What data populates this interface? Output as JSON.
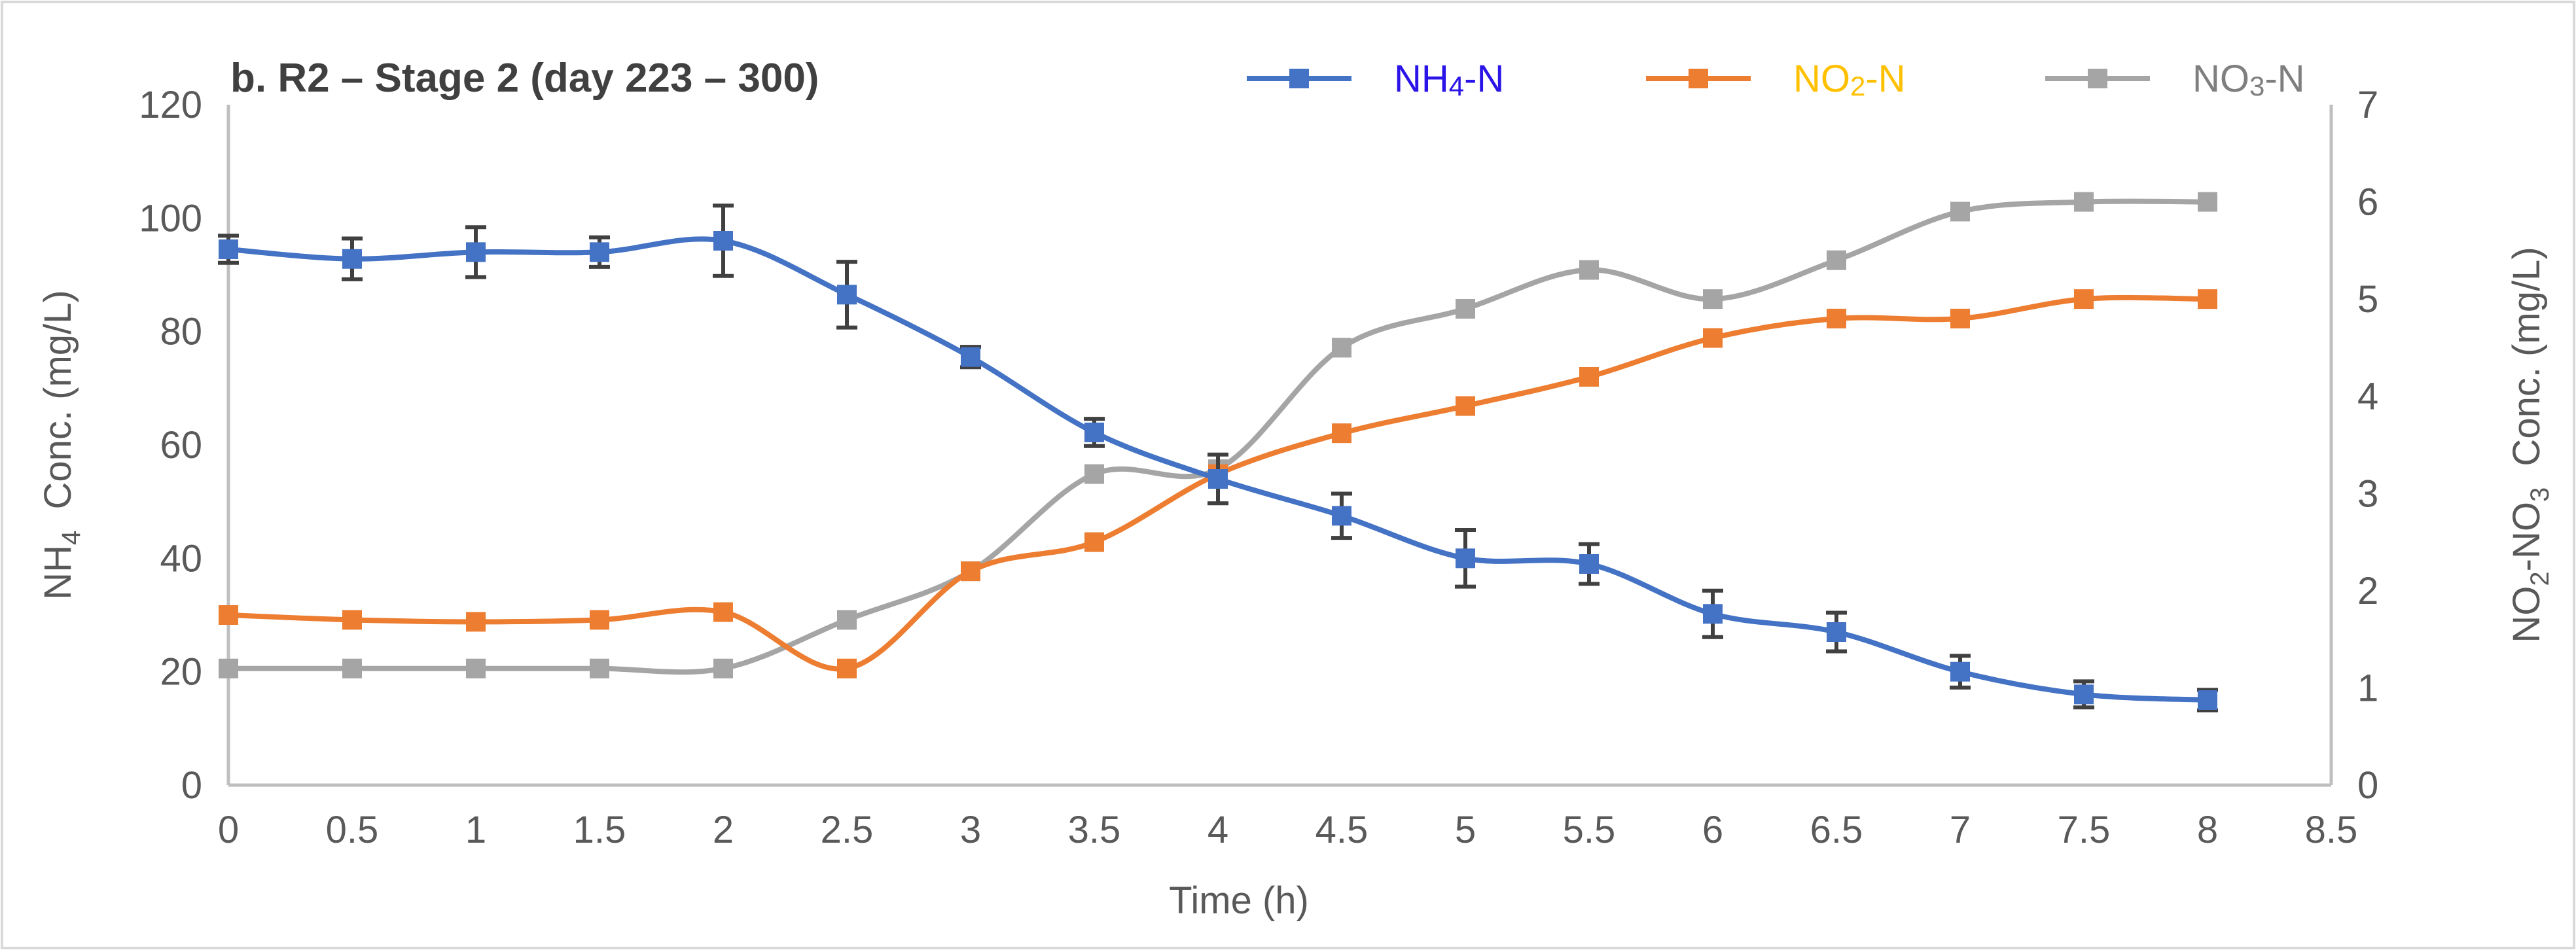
{
  "chart_data": {
    "type": "line",
    "title": "b. R2 – Stage 2 (day 223 – 300)",
    "xlabel": "Time (h)",
    "ylabel_left": {
      "main": "NH",
      "sub": "4",
      "rest": "  Conc. (mg/L)"
    },
    "ylabel_right": {
      "p1": "NO",
      "s1": "2",
      "p2": "-NO",
      "s2": "3",
      "p3": "  Conc. (mg/L)"
    },
    "xlim": [
      0,
      8.5
    ],
    "ylim_left": [
      0,
      120
    ],
    "ylim_right": [
      0,
      7
    ],
    "x_ticks": [
      "0",
      "0.5",
      "1",
      "1.5",
      "2",
      "2.5",
      "3",
      "3.5",
      "4",
      "4.5",
      "5",
      "5.5",
      "6",
      "6.5",
      "7",
      "7.5",
      "8",
      "8.5"
    ],
    "y_left_ticks": [
      "0",
      "20",
      "40",
      "60",
      "80",
      "100",
      "120"
    ],
    "y_right_ticks": [
      "0",
      "1",
      "2",
      "3",
      "4",
      "5",
      "6",
      "7"
    ],
    "x": [
      0,
      0.5,
      1,
      1.5,
      2,
      2.5,
      3,
      3.5,
      4,
      4.5,
      5,
      5.5,
      6,
      6.5,
      7,
      7.5,
      8
    ],
    "series": [
      {
        "name": "NH4-N",
        "legend_label": "NH4-N",
        "legend_main": "NH",
        "legend_sub": "4",
        "legend_rest": "-N",
        "axis": "left",
        "color": "#4472c4",
        "legend_text_color": "#2a14e8",
        "values": [
          94.5,
          92.8,
          94,
          94,
          96,
          86.5,
          75.5,
          62.2,
          54,
          47.5,
          40,
          39,
          30.2,
          27,
          20,
          16,
          15
        ],
        "errors": [
          2.4,
          3.6,
          4.4,
          2.6,
          6.2,
          5.8,
          1.8,
          2.4,
          4.3,
          3.9,
          5.0,
          3.5,
          4.1,
          3.4,
          2.8,
          2.3,
          1.8
        ]
      },
      {
        "name": "NO2-N",
        "legend_label": "NO2-N",
        "legend_main": "NO",
        "legend_sub": "2",
        "legend_rest": "-N",
        "axis": "right",
        "color": "#ed7d31",
        "legend_text_color": "#ffc000",
        "values": [
          1.75,
          1.7,
          1.68,
          1.7,
          1.78,
          1.2,
          2.2,
          2.5,
          3.2,
          3.62,
          3.9,
          4.2,
          4.6,
          4.8,
          4.8,
          5.0,
          5.0
        ]
      },
      {
        "name": "NO3-N",
        "legend_label": "NO3-N",
        "legend_main": "NO",
        "legend_sub": "3",
        "legend_rest": "-N",
        "axis": "right",
        "color": "#a5a5a5",
        "legend_text_color": "#7f7f7f",
        "values": [
          1.2,
          1.2,
          1.2,
          1.2,
          1.2,
          1.7,
          2.2,
          3.2,
          3.25,
          4.5,
          4.9,
          5.3,
          5.0,
          5.4,
          5.9,
          6.0,
          6.0
        ]
      }
    ],
    "legend_position": "top-right",
    "grid": false
  }
}
